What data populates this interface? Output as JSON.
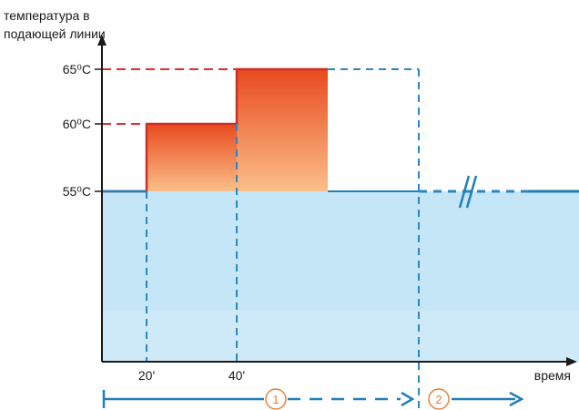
{
  "chart_data": {
    "type": "step",
    "y_axis_label": [
      "температура в",
      "подающей линии"
    ],
    "x_axis_label": "время",
    "x_ticks": [
      "20'",
      "40'"
    ],
    "y_ticks": [
      {
        "value": 55,
        "label": "55⁰C"
      },
      {
        "value": 60,
        "label": "60⁰C"
      },
      {
        "value": 65,
        "label": "65⁰C"
      }
    ],
    "profile": {
      "base_level": 55,
      "steps": [
        {
          "from": "20'",
          "to": "40'",
          "level": 60
        },
        {
          "from": "40'",
          "level": 65
        }
      ]
    },
    "break_mark": "//",
    "phases": [
      {
        "label": "1",
        "description": ""
      },
      {
        "label": "2",
        "description": ""
      }
    ]
  },
  "colors": {
    "axis": "#1a1a1a",
    "base_fill": "#c5e6f7",
    "base_line": "#1f7fb8",
    "dashed_blue": "#2a87c4",
    "dashed_red": "#e0302a",
    "step_top": "#e84a1f",
    "step_bottom": "#fbbf8a",
    "phase_circle": "#e8823a"
  }
}
